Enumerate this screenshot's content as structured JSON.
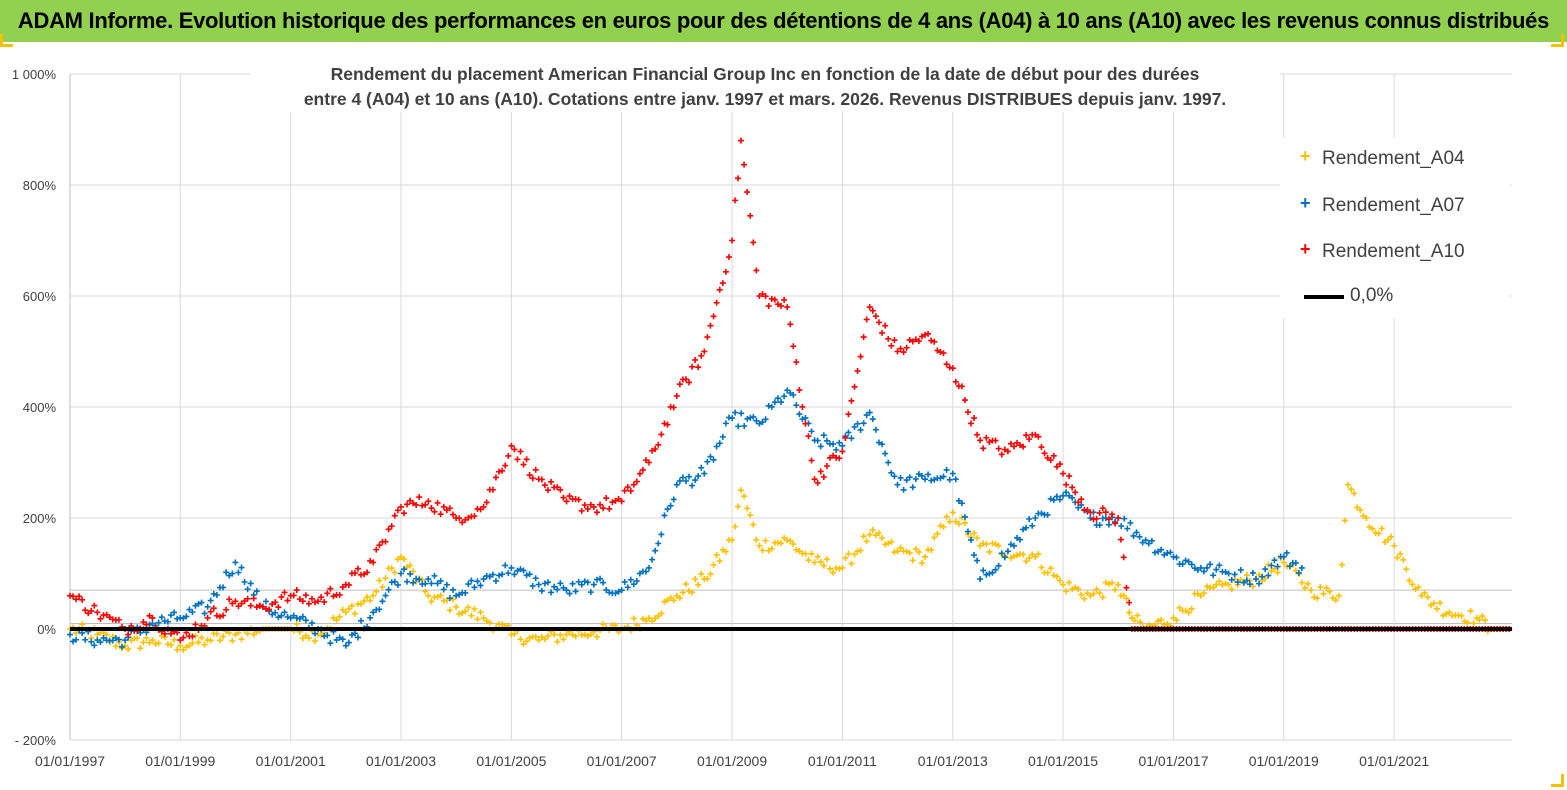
{
  "banner": {
    "title": "ADAM Informe. Evolution historique des performances en euros pour des détentions de 4 ans (A04) à 10 ans (A10) avec les revenus connus distribués",
    "color": "#92d050"
  },
  "chart_data": {
    "type": "scatter",
    "title_line1": "Rendement du placement American Financial Group Inc en fonction de la date de début pour des durées",
    "title_line2": "entre 4 (A04) et 10 ans (A10).  Cotations entre janv. 1997 et mars. 2026. Revenus DISTRIBUES depuis janv. 1997.",
    "ylim": [
      -200,
      1000
    ],
    "xlim": [
      "1997-01-01",
      "2023-02-20"
    ],
    "grid": true,
    "legend_position": "top-right",
    "y_ticks": [
      "- 200%",
      "0%",
      "200%",
      "400%",
      "600%",
      "800%",
      "1 000%"
    ],
    "x_ticks": [
      "01/01/1997",
      "01/01/1999",
      "01/01/2001",
      "01/01/2003",
      "01/01/2005",
      "01/01/2007",
      "01/01/2009",
      "01/01/2011",
      "01/01/2013",
      "01/01/2015",
      "01/01/2017",
      "01/01/2019",
      "01/01/2021"
    ],
    "series": [
      {
        "name": "Rendement_A04",
        "color": "#ffc000",
        "marker": "+",
        "points": [
          [
            "1997-01-01",
            0
          ],
          [
            "1997-07-01",
            -10
          ],
          [
            "1998-01-01",
            -30
          ],
          [
            "1998-07-01",
            -20
          ],
          [
            "1999-01-01",
            -30
          ],
          [
            "1999-07-01",
            -20
          ],
          [
            "2000-01-01",
            -10
          ],
          [
            "2000-07-01",
            0
          ],
          [
            "2001-01-01",
            0
          ],
          [
            "2001-07-01",
            -10
          ],
          [
            "2002-01-01",
            30
          ],
          [
            "2002-07-01",
            60
          ],
          [
            "2003-01-01",
            130
          ],
          [
            "2003-07-01",
            60
          ],
          [
            "2004-01-01",
            40
          ],
          [
            "2004-07-01",
            20
          ],
          [
            "2005-01-01",
            -10
          ],
          [
            "2005-07-01",
            -20
          ],
          [
            "2006-01-01",
            -10
          ],
          [
            "2006-07-01",
            -5
          ],
          [
            "2007-01-01",
            0
          ],
          [
            "2007-07-01",
            20
          ],
          [
            "2008-01-01",
            60
          ],
          [
            "2008-07-01",
            90
          ],
          [
            "2009-01-01",
            160
          ],
          [
            "2009-03-01",
            250
          ],
          [
            "2009-07-01",
            150
          ],
          [
            "2010-01-01",
            160
          ],
          [
            "2010-07-01",
            120
          ],
          [
            "2011-01-01",
            110
          ],
          [
            "2011-07-01",
            170
          ],
          [
            "2012-01-01",
            140
          ],
          [
            "2012-07-01",
            130
          ],
          [
            "2013-01-01",
            210
          ],
          [
            "2013-07-01",
            150
          ],
          [
            "2014-01-01",
            140
          ],
          [
            "2014-07-01",
            130
          ],
          [
            "2015-01-01",
            80
          ],
          [
            "2015-07-01",
            60
          ],
          [
            "2016-01-01",
            80
          ],
          [
            "2016-04-01",
            20
          ],
          [
            "2016-07-01",
            0
          ],
          [
            "2017-01-01",
            20
          ],
          [
            "2017-07-01",
            60
          ],
          [
            "2018-01-01",
            80
          ],
          [
            "2018-07-01",
            90
          ],
          [
            "2019-01-01",
            120
          ],
          [
            "2019-07-01",
            70
          ],
          [
            "2020-01-01",
            60
          ],
          [
            "2020-03-01",
            260
          ],
          [
            "2020-07-01",
            200
          ],
          [
            "2021-01-01",
            150
          ],
          [
            "2021-07-01",
            60
          ],
          [
            "2022-01-01",
            30
          ],
          [
            "2022-07-01",
            20
          ],
          [
            "2022-10-01",
            0
          ],
          [
            "2023-02-01",
            0
          ]
        ]
      },
      {
        "name": "Rendement_A07",
        "color": "#0070c0",
        "marker": "+",
        "points": [
          [
            "1997-01-01",
            -10
          ],
          [
            "1997-07-01",
            -20
          ],
          [
            "1998-01-01",
            -20
          ],
          [
            "1998-07-01",
            10
          ],
          [
            "1999-01-01",
            20
          ],
          [
            "1999-07-01",
            40
          ],
          [
            "2000-01-01",
            120
          ],
          [
            "2000-07-01",
            40
          ],
          [
            "2001-01-01",
            20
          ],
          [
            "2001-07-01",
            0
          ],
          [
            "2002-01-01",
            -30
          ],
          [
            "2002-07-01",
            30
          ],
          [
            "2003-01-01",
            100
          ],
          [
            "2003-07-01",
            90
          ],
          [
            "2004-01-01",
            60
          ],
          [
            "2004-07-01",
            90
          ],
          [
            "2005-01-01",
            110
          ],
          [
            "2005-07-01",
            80
          ],
          [
            "2006-01-01",
            70
          ],
          [
            "2006-07-01",
            80
          ],
          [
            "2007-01-01",
            70
          ],
          [
            "2007-07-01",
            110
          ],
          [
            "2008-01-01",
            260
          ],
          [
            "2008-07-01",
            280
          ],
          [
            "2009-01-01",
            380
          ],
          [
            "2009-07-01",
            370
          ],
          [
            "2010-01-01",
            430
          ],
          [
            "2010-07-01",
            340
          ],
          [
            "2011-01-01",
            330
          ],
          [
            "2011-07-01",
            390
          ],
          [
            "2012-01-01",
            260
          ],
          [
            "2012-07-01",
            270
          ],
          [
            "2013-01-01",
            280
          ],
          [
            "2013-07-01",
            90
          ],
          [
            "2014-01-01",
            140
          ],
          [
            "2014-07-01",
            200
          ],
          [
            "2015-01-01",
            240
          ],
          [
            "2015-07-01",
            200
          ],
          [
            "2016-01-01",
            200
          ],
          [
            "2016-07-01",
            160
          ],
          [
            "2017-01-01",
            130
          ],
          [
            "2017-07-01",
            110
          ],
          [
            "2018-01-01",
            100
          ],
          [
            "2018-07-01",
            90
          ],
          [
            "2019-01-01",
            130
          ],
          [
            "2019-05-01",
            110
          ]
        ]
      },
      {
        "name": "Rendement_A10",
        "color": "#ff0000",
        "marker": "+",
        "points": [
          [
            "1997-01-01",
            60
          ],
          [
            "1997-07-01",
            30
          ],
          [
            "1998-01-01",
            0
          ],
          [
            "1998-07-01",
            20
          ],
          [
            "1999-01-01",
            -20
          ],
          [
            "1999-07-01",
            20
          ],
          [
            "2000-01-01",
            50
          ],
          [
            "2000-07-01",
            40
          ],
          [
            "2001-01-01",
            60
          ],
          [
            "2001-07-01",
            50
          ],
          [
            "2002-01-01",
            80
          ],
          [
            "2002-07-01",
            120
          ],
          [
            "2003-01-01",
            220
          ],
          [
            "2003-07-01",
            230
          ],
          [
            "2004-01-01",
            200
          ],
          [
            "2004-07-01",
            220
          ],
          [
            "2005-01-01",
            330
          ],
          [
            "2005-07-01",
            270
          ],
          [
            "2006-01-01",
            230
          ],
          [
            "2006-07-01",
            220
          ],
          [
            "2007-01-01",
            230
          ],
          [
            "2007-07-01",
            300
          ],
          [
            "2008-01-01",
            420
          ],
          [
            "2008-07-01",
            500
          ],
          [
            "2009-01-01",
            700
          ],
          [
            "2009-03-01",
            880
          ],
          [
            "2009-07-01",
            600
          ],
          [
            "2010-01-01",
            580
          ],
          [
            "2010-07-01",
            270
          ],
          [
            "2011-01-01",
            320
          ],
          [
            "2011-07-01",
            580
          ],
          [
            "2012-01-01",
            500
          ],
          [
            "2012-07-01",
            530
          ],
          [
            "2013-01-01",
            470
          ],
          [
            "2013-07-01",
            340
          ],
          [
            "2014-01-01",
            320
          ],
          [
            "2014-07-01",
            350
          ],
          [
            "2015-01-01",
            280
          ],
          [
            "2015-07-01",
            210
          ],
          [
            "2016-01-01",
            200
          ],
          [
            "2016-04-01",
            0
          ],
          [
            "2017-01-01",
            0
          ],
          [
            "2018-01-01",
            0
          ],
          [
            "2019-01-01",
            0
          ],
          [
            "2020-01-01",
            0
          ],
          [
            "2021-01-01",
            0
          ],
          [
            "2022-01-01",
            0
          ],
          [
            "2023-02-01",
            0
          ]
        ]
      },
      {
        "name": "0,0%",
        "color": "#000000",
        "marker": "line",
        "points": [
          [
            "1997-01-01",
            0
          ],
          [
            "2023-02-20",
            0
          ]
        ]
      }
    ]
  }
}
